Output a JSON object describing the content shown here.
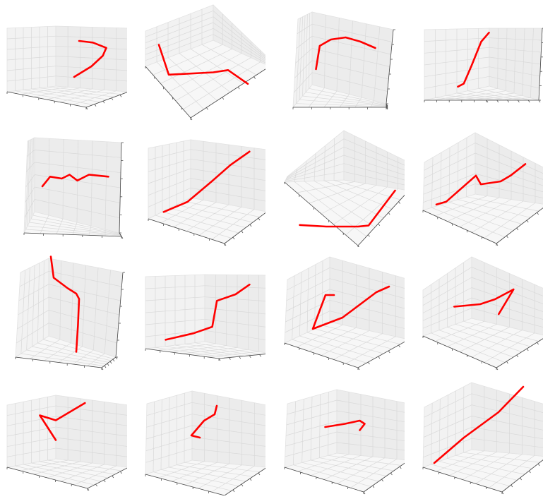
{
  "style": {
    "line_color": "#ff0000",
    "pane_color": "#f2f2f2",
    "grid_color": "#d9d9d9"
  },
  "chart_data": [
    {
      "type": "line",
      "panel": 1,
      "x": [
        0.3,
        0.65,
        0.88,
        0.95,
        0.68,
        0.4
      ],
      "y": [
        0.2,
        0.4,
        0.6,
        0.75,
        0.85,
        0.88
      ],
      "z": [
        0.1,
        0.35,
        0.6,
        0.82,
        0.9,
        0.95
      ],
      "xlim": [
        0,
        1
      ],
      "ylim": [
        0,
        1
      ],
      "zlim": [
        0,
        1
      ],
      "grid": true
    },
    {
      "type": "line",
      "panel": 2,
      "x": [
        0.05,
        0.15,
        0.6,
        0.75,
        0.95
      ],
      "y": [
        0.9,
        0.25,
        0.3,
        0.35,
        0.05
      ],
      "z": [
        0.85,
        0.3,
        0.55,
        0.65,
        0.15
      ],
      "xlim": [
        0,
        1
      ],
      "ylim": [
        0,
        1
      ],
      "zlim": [
        0,
        1
      ],
      "grid": true
    },
    {
      "type": "line",
      "panel": 3,
      "x": [
        0.1,
        0.15,
        0.3,
        0.5,
        0.7,
        0.9
      ],
      "y": [
        0.15,
        0.7,
        0.85,
        0.9,
        0.8,
        0.65
      ],
      "z": [
        0.2,
        0.7,
        0.9,
        0.95,
        0.85,
        0.7
      ],
      "xlim": [
        0,
        1
      ],
      "ylim": [
        0,
        1
      ],
      "zlim": [
        0,
        1
      ],
      "grid": true
    },
    {
      "type": "line",
      "panel": 4,
      "x": [
        0.1,
        0.25,
        0.45,
        0.7,
        0.9
      ],
      "y": [
        0.05,
        0.1,
        0.4,
        0.8,
        0.95
      ],
      "z": [
        0.05,
        0.15,
        0.45,
        0.8,
        0.95
      ],
      "xlim": [
        0,
        1
      ],
      "ylim": [
        0,
        1
      ],
      "zlim": [
        0,
        1
      ],
      "grid": true
    },
    {
      "type": "line",
      "panel": 5,
      "x": [
        0.1,
        0.2,
        0.35,
        0.45,
        0.55,
        0.7,
        0.95
      ],
      "y": [
        0.2,
        0.45,
        0.4,
        0.5,
        0.35,
        0.5,
        0.45
      ],
      "z": [
        0.2,
        0.45,
        0.4,
        0.5,
        0.35,
        0.5,
        0.45
      ],
      "xlim": [
        0,
        1
      ],
      "ylim": [
        0,
        1
      ],
      "zlim": [
        0,
        1
      ],
      "grid": true
    },
    {
      "type": "line",
      "panel": 6,
      "x": [
        0.05,
        0.3,
        0.55,
        0.75,
        0.95
      ],
      "y": [
        0.05,
        0.2,
        0.5,
        0.75,
        0.95
      ],
      "z": [
        0.05,
        0.2,
        0.5,
        0.75,
        0.95
      ],
      "xlim": [
        0,
        1
      ],
      "ylim": [
        0,
        1
      ],
      "zlim": [
        0,
        1
      ],
      "grid": true
    },
    {
      "type": "line",
      "panel": 7,
      "x": [
        0.05,
        0.3,
        0.6,
        0.7,
        0.95
      ],
      "y": [
        0.15,
        0.12,
        0.12,
        0.14,
        0.8
      ],
      "z": [
        0.15,
        0.13,
        0.12,
        0.15,
        0.8
      ],
      "xlim": [
        0,
        1
      ],
      "ylim": [
        0,
        1
      ],
      "zlim": [
        0,
        1
      ],
      "grid": true
    },
    {
      "type": "line",
      "panel": 8,
      "x": [
        0.05,
        0.15,
        0.45,
        0.5,
        0.7,
        0.8,
        0.95
      ],
      "y": [
        0.1,
        0.15,
        0.6,
        0.45,
        0.5,
        0.6,
        0.8
      ],
      "z": [
        0.1,
        0.15,
        0.6,
        0.45,
        0.5,
        0.6,
        0.8
      ],
      "xlim": [
        0,
        1
      ],
      "ylim": [
        0,
        1
      ],
      "zlim": [
        0,
        1
      ],
      "grid": true
    },
    {
      "type": "line",
      "panel": 9,
      "x": [
        0.1,
        0.15,
        0.4,
        0.55,
        0.6,
        0.58,
        0.55
      ],
      "y": [
        0.95,
        0.75,
        0.65,
        0.6,
        0.55,
        0.3,
        0.05
      ],
      "z": [
        0.95,
        0.75,
        0.65,
        0.6,
        0.55,
        0.3,
        0.05
      ],
      "xlim": [
        0,
        1
      ],
      "ylim": [
        0,
        1
      ],
      "zlim": [
        0,
        1
      ],
      "grid": true
    },
    {
      "type": "line",
      "panel": 10,
      "x": [
        0.05,
        0.35,
        0.55,
        0.6,
        0.8,
        0.95
      ],
      "y": [
        0.05,
        0.15,
        0.25,
        0.65,
        0.75,
        0.9
      ],
      "z": [
        0.05,
        0.15,
        0.25,
        0.65,
        0.75,
        0.9
      ],
      "xlim": [
        0,
        1
      ],
      "ylim": [
        0,
        1
      ],
      "zlim": [
        0,
        1
      ],
      "grid": true
    },
    {
      "type": "line",
      "panel": 11,
      "x": [
        0.3,
        0.2,
        0.05,
        0.4,
        0.8,
        0.95
      ],
      "y": [
        0.7,
        0.7,
        0.1,
        0.3,
        0.75,
        0.85
      ],
      "z": [
        0.7,
        0.7,
        0.1,
        0.3,
        0.75,
        0.85
      ],
      "xlim": [
        0,
        1
      ],
      "ylim": [
        0,
        1
      ],
      "zlim": [
        0,
        1
      ],
      "grid": true
    },
    {
      "type": "line",
      "panel": 12,
      "x": [
        0.05,
        0.4,
        0.6,
        0.85,
        0.65
      ],
      "y": [
        0.45,
        0.5,
        0.6,
        0.8,
        0.3
      ],
      "z": [
        0.45,
        0.5,
        0.6,
        0.8,
        0.3
      ],
      "xlim": [
        0,
        1
      ],
      "ylim": [
        0,
        1
      ],
      "zlim": [
        0,
        1
      ],
      "grid": true
    },
    {
      "type": "line",
      "panel": 13,
      "x": [
        0.4,
        0.1,
        0.4,
        0.95
      ],
      "y": [
        0.05,
        0.55,
        0.45,
        0.8
      ],
      "z": [
        0.05,
        0.55,
        0.45,
        0.8
      ],
      "xlim": [
        0,
        1
      ],
      "ylim": [
        0,
        1
      ],
      "zlim": [
        0,
        1
      ],
      "grid": true
    },
    {
      "type": "line",
      "panel": 14,
      "x": [
        0.3,
        0.1,
        0.4,
        0.65,
        0.7
      ],
      "y": [
        0.2,
        0.25,
        0.6,
        0.75,
        0.95
      ],
      "z": [
        0.2,
        0.25,
        0.6,
        0.75,
        0.95
      ],
      "xlim": [
        0,
        1
      ],
      "ylim": [
        0,
        1
      ],
      "zlim": [
        0,
        1
      ],
      "grid": true
    },
    {
      "type": "line",
      "panel": 15,
      "x": [
        0.05,
        0.45,
        0.75,
        0.85,
        0.75
      ],
      "y": [
        0.6,
        0.7,
        0.8,
        0.7,
        0.5
      ],
      "z": [
        0.6,
        0.7,
        0.8,
        0.7,
        0.5
      ],
      "xlim": [
        0,
        1
      ],
      "ylim": [
        0,
        1
      ],
      "zlim": [
        0,
        1
      ],
      "grid": true
    },
    {
      "type": "line",
      "panel": 16,
      "x": [
        0.05,
        0.35,
        0.7,
        0.95
      ],
      "y": [
        0.05,
        0.35,
        0.65,
        0.95
      ],
      "z": [
        0.05,
        0.35,
        0.65,
        0.95
      ],
      "xlim": [
        0,
        1
      ],
      "ylim": [
        0,
        1
      ],
      "zlim": [
        0,
        1
      ],
      "grid": true
    }
  ]
}
